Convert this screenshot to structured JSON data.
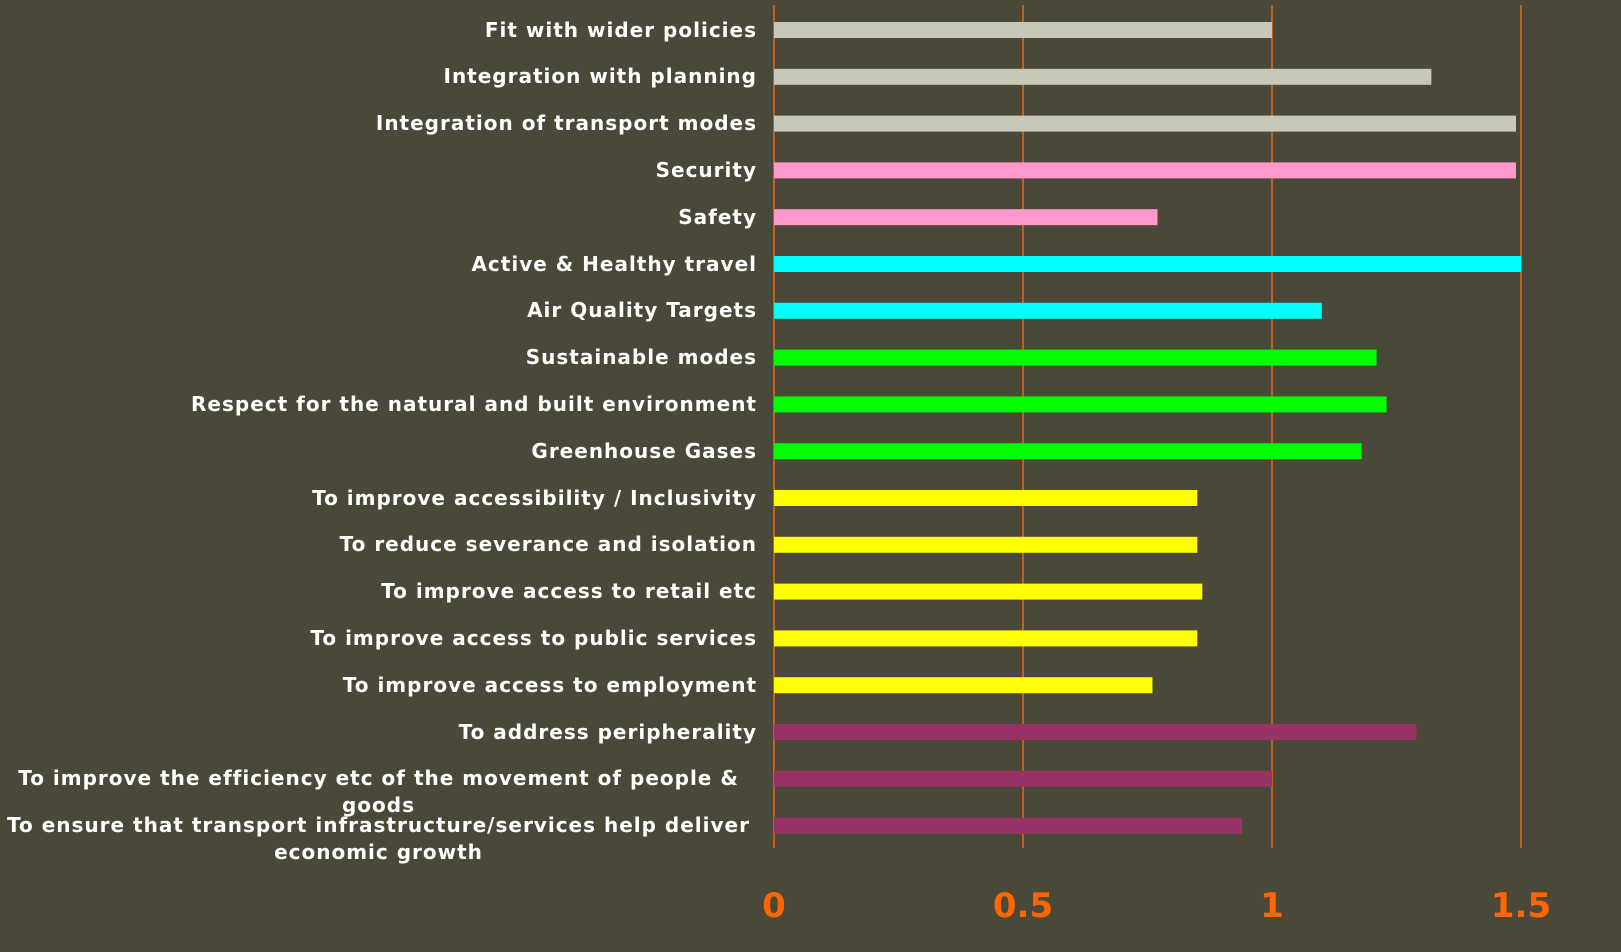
{
  "chart_data": {
    "type": "barh",
    "categories": [
      "Fit with wider policies",
      "Integration with planning",
      "Integration of transport modes",
      "Security",
      "Safety",
      "Active & Healthy travel",
      "Air Quality Targets",
      "Sustainable modes",
      "Respect for the natural and built environment",
      "Greenhouse Gases",
      "To improve accessibility / Inclusivity",
      "To reduce severance and isolation",
      "To improve access to retail etc",
      "To improve access to public services",
      "To improve access to employment",
      "To address peripherality",
      "To improve the efficiency etc of the movement of people & goods",
      "To ensure that transport infrastructure/services help deliver economic growth"
    ],
    "values": [
      1.0,
      1.32,
      1.49,
      1.49,
      0.77,
      1.5,
      1.1,
      1.21,
      1.23,
      1.18,
      0.85,
      0.85,
      0.86,
      0.85,
      0.76,
      1.29,
      1.0,
      0.94
    ],
    "colors": [
      "#c8c8b8",
      "#c8c8b8",
      "#c8c8b8",
      "#ff99cc",
      "#ff99cc",
      "#00ffff",
      "#00ffff",
      "#00ff00",
      "#00ff00",
      "#00ff00",
      "#ffff00",
      "#ffff00",
      "#ffff00",
      "#ffff00",
      "#ffff00",
      "#993366",
      "#993366",
      "#993366"
    ],
    "xlim": [
      0,
      1.5
    ],
    "xticks": [
      0,
      0.5,
      1,
      1.5
    ],
    "grid": true,
    "grid_color": "#e06c10",
    "tick_color": "#ff6600"
  }
}
